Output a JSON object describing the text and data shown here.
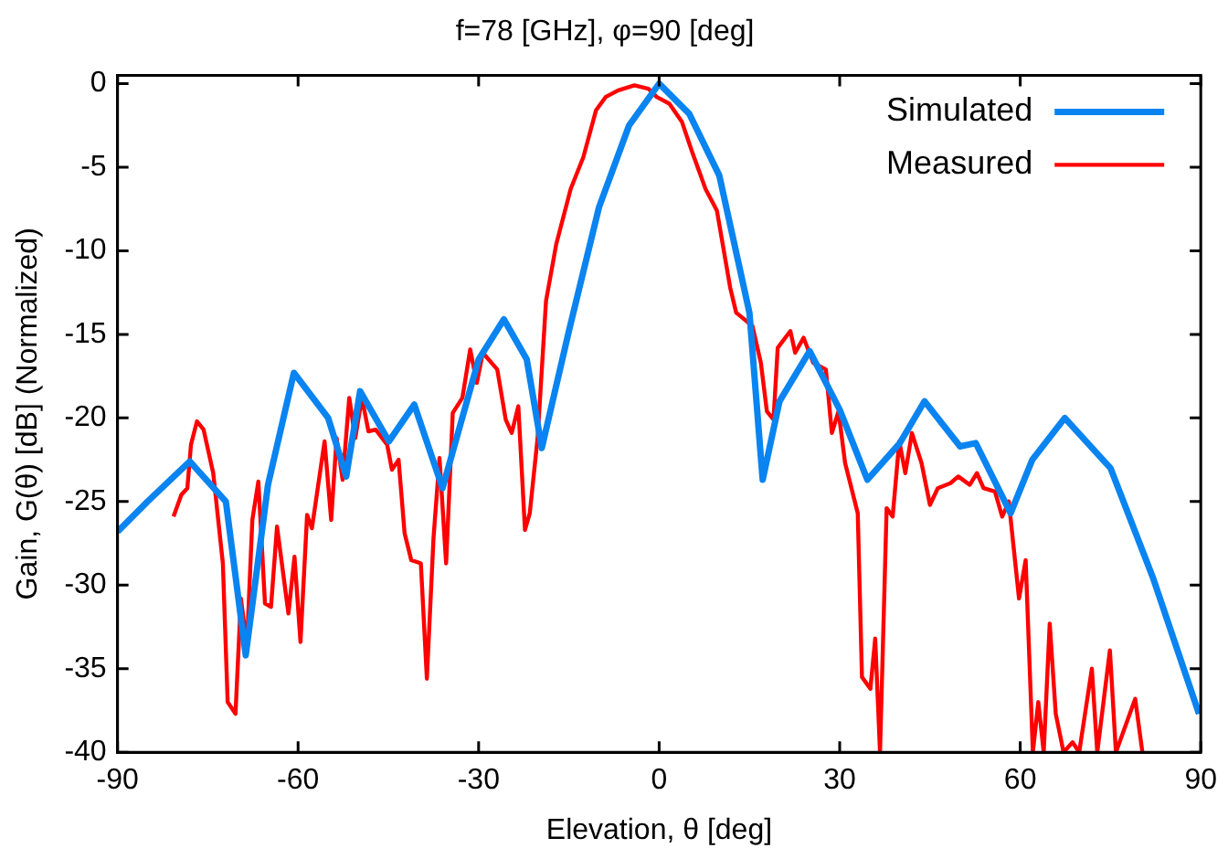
{
  "chart_data": {
    "type": "line",
    "title": "f=78 [GHz], φ=90 [deg]",
    "xlabel": "Elevation, θ [deg]",
    "ylabel": "Gain, G(θ) [dB] (Normalized)",
    "xlim": [
      -90,
      90
    ],
    "xticks": [
      -90,
      -60,
      -30,
      0,
      30,
      60,
      90
    ],
    "ylim": [
      -40,
      0.5
    ],
    "yticks": [
      -40,
      -35,
      -30,
      -25,
      -20,
      -15,
      -10,
      -5,
      0
    ],
    "grid": false,
    "legend": "top right",
    "marker": "none",
    "line_style": "solid",
    "series": [
      {
        "name": "Simulated",
        "color": "#0a84f0",
        "x": [
          -90,
          -85,
          -78,
          -72,
          -68.7,
          -65,
          -60.7,
          -55,
          -52,
          -49.7,
          -44.9,
          -40.7,
          -36,
          -30,
          -25.8,
          -22,
          -19.5,
          -15,
          -10,
          -5,
          0,
          5,
          10,
          15,
          17.2,
          20,
          25,
          30,
          34.6,
          40,
          44.1,
          50,
          52.6,
          58.4,
          62,
          67.4,
          75,
          82,
          89.7
        ],
        "values": [
          -26.8,
          -25,
          -22.6,
          -25,
          -34.2,
          -24,
          -17.3,
          -20,
          -23.5,
          -18.4,
          -21.4,
          -19.2,
          -24.2,
          -16.5,
          -14.1,
          -16.5,
          -21.8,
          -14.8,
          -7.4,
          -2.5,
          0,
          -1.8,
          -5.5,
          -13.7,
          -23.7,
          -19,
          -16,
          -19.5,
          -23.7,
          -21.5,
          -19,
          -21.7,
          -21.5,
          -25.7,
          -22.5,
          -20,
          -23,
          -29.5,
          -37.7
        ]
      },
      {
        "name": "Measured",
        "color": "#ff0000",
        "x": [
          -80.7,
          -79.4,
          -78.4,
          -77.8,
          -76.8,
          -75.7,
          -74.1,
          -72.5,
          -71.7,
          -70.4,
          -69.5,
          -68.5,
          -67.6,
          -66.6,
          -65.5,
          -64.5,
          -63.5,
          -61.6,
          -60.6,
          -59.6,
          -58.5,
          -57.7,
          -55.6,
          -54.5,
          -53.6,
          -52.6,
          -51.5,
          -50.5,
          -49.4,
          -48.3,
          -47.1,
          -45.2,
          -44.4,
          -43.3,
          -42.3,
          -41.2,
          -39.6,
          -38.6,
          -37.5,
          -36.5,
          -35.4,
          -34.3,
          -32.7,
          -31.4,
          -30.3,
          -29.3,
          -26.9,
          -25.5,
          -24.5,
          -23.4,
          -22.3,
          -21.5,
          -20.2,
          -18.8,
          -17.1,
          -14.7,
          -12.6,
          -10.5,
          -8.9,
          -6.8,
          -4.1,
          -1.8,
          -0.4,
          1.7,
          3.8,
          5.4,
          7.7,
          9.6,
          11.8,
          12.8,
          15.5,
          16.9,
          17.9,
          19,
          19.7,
          21.8,
          22.6,
          24,
          25.6,
          27.7,
          28.7,
          29.8,
          30.9,
          33,
          33.7,
          35.1,
          35.9,
          36.7,
          37.8,
          38.8,
          39.9,
          40.9,
          42,
          43.6,
          45,
          46.3,
          48.4,
          49.7,
          51.6,
          52.8,
          53.9,
          55.8,
          57,
          58.1,
          59.8,
          60.9,
          62.1,
          63,
          63.9,
          64.9,
          65.9,
          67.2,
          68.7,
          69.8,
          71.9,
          72.8,
          74.9,
          75.9,
          79.1,
          80.3
        ],
        "values": [
          -25.9,
          -24.6,
          -24.2,
          -21.6,
          -20.2,
          -20.7,
          -23.3,
          -28.7,
          -37,
          -37.7,
          -30.8,
          -33.6,
          -26.1,
          -23.8,
          -31.1,
          -31.3,
          -26.5,
          -31.7,
          -28.3,
          -33.4,
          -25.8,
          -26.6,
          -21.4,
          -26.1,
          -21.2,
          -23.7,
          -18.8,
          -21.2,
          -18.8,
          -20.8,
          -20.7,
          -21.6,
          -23.1,
          -22.5,
          -26.9,
          -28.5,
          -28.7,
          -35.6,
          -27.2,
          -22.4,
          -28.7,
          -19.7,
          -18.8,
          -15.9,
          -17.9,
          -16.1,
          -17.1,
          -20.1,
          -20.9,
          -19.3,
          -26.7,
          -25.7,
          -21.2,
          -13,
          -9.6,
          -6.3,
          -4.4,
          -1.6,
          -0.8,
          -0.4,
          -0.1,
          -0.3,
          -0.8,
          -1.2,
          -2.3,
          -4,
          -6.3,
          -7.6,
          -12.2,
          -13.7,
          -14.5,
          -16.7,
          -19.6,
          -20.1,
          -15.8,
          -14.8,
          -16.1,
          -15.2,
          -16.7,
          -17.1,
          -20.9,
          -19.6,
          -22.7,
          -25.7,
          -35.5,
          -36.2,
          -33.2,
          -40,
          -25.4,
          -25.9,
          -21.4,
          -23.3,
          -20.9,
          -22.7,
          -25.2,
          -24.2,
          -23.9,
          -23.5,
          -24,
          -23.3,
          -24.2,
          -24.4,
          -25.9,
          -25,
          -30.8,
          -28.5,
          -40,
          -37,
          -40,
          -32.3,
          -37.7,
          -40,
          -39.4,
          -40,
          -35,
          -40,
          -33.9,
          -40,
          -36.8,
          -40
        ]
      }
    ]
  }
}
